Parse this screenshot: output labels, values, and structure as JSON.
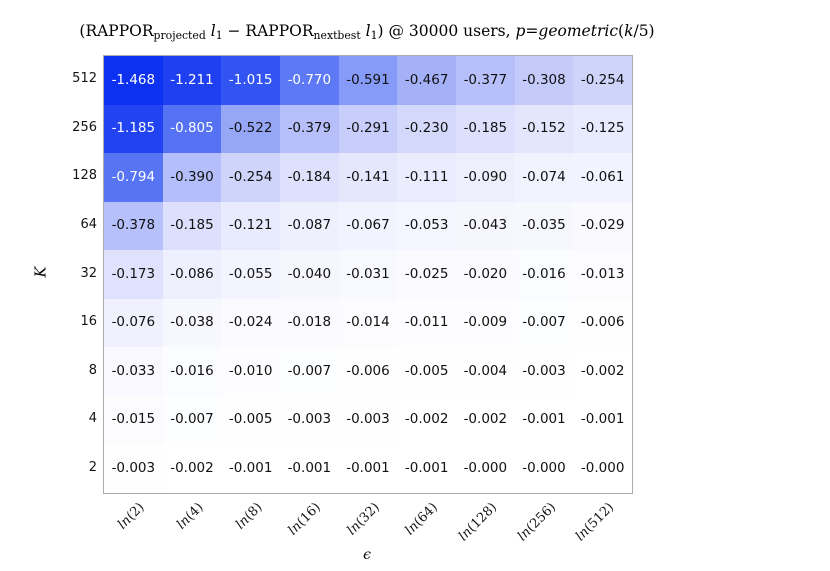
{
  "figure": {
    "background_color": "#ffffff"
  },
  "chart_data": {
    "type": "heatmap",
    "title": "(RAPPOR_projected l1 − RAPPOR_nextbest l1) @ 30000 users, p=geometric(k/5)",
    "title_segments": [
      {
        "t": "(RAPPOR",
        "s": "r"
      },
      {
        "t": "projected",
        "s": "sub"
      },
      {
        "t": " ",
        "s": "r"
      },
      {
        "t": "l",
        "s": "i"
      },
      {
        "t": "1",
        "s": "sub"
      },
      {
        "t": " − RAPPOR",
        "s": "r"
      },
      {
        "t": "nextbest",
        "s": "sub"
      },
      {
        "t": " ",
        "s": "r"
      },
      {
        "t": "l",
        "s": "i"
      },
      {
        "t": "1",
        "s": "sub"
      },
      {
        "t": ") @ 30000 users, ",
        "s": "r"
      },
      {
        "t": "p",
        "s": "i"
      },
      {
        "t": "=",
        "s": "r"
      },
      {
        "t": "geometric",
        "s": "i"
      },
      {
        "t": "(",
        "s": "r"
      },
      {
        "t": "k",
        "s": "i"
      },
      {
        "t": "/5)",
        "s": "r"
      }
    ],
    "xlabel": "ϵ",
    "ylabel": "K",
    "x_tick_labels": [
      "ln(2)",
      "ln(4)",
      "ln(8)",
      "ln(16)",
      "ln(32)",
      "ln(64)",
      "ln(128)",
      "ln(256)",
      "ln(512)"
    ],
    "y_tick_labels": [
      "512",
      "256",
      "128",
      "64",
      "32",
      "16",
      "8",
      "4",
      "2"
    ],
    "values": [
      [
        -1.468,
        -1.211,
        -1.015,
        -0.77,
        -0.591,
        -0.467,
        -0.377,
        -0.308,
        -0.254
      ],
      [
        -1.185,
        -0.805,
        -0.522,
        -0.379,
        -0.291,
        -0.23,
        -0.185,
        -0.152,
        -0.125
      ],
      [
        -0.794,
        -0.39,
        -0.254,
        -0.184,
        -0.141,
        -0.111,
        -0.09,
        -0.074,
        -0.061
      ],
      [
        -0.378,
        -0.185,
        -0.121,
        -0.087,
        -0.067,
        -0.053,
        -0.043,
        -0.035,
        -0.029
      ],
      [
        -0.173,
        -0.086,
        -0.055,
        -0.04,
        -0.031,
        -0.025,
        -0.02,
        -0.016,
        -0.013
      ],
      [
        -0.076,
        -0.038,
        -0.024,
        -0.018,
        -0.014,
        -0.011,
        -0.009,
        -0.007,
        -0.006
      ],
      [
        -0.033,
        -0.016,
        -0.01,
        -0.007,
        -0.006,
        -0.005,
        -0.004,
        -0.003,
        -0.002
      ],
      [
        -0.015,
        -0.007,
        -0.005,
        -0.003,
        -0.003,
        -0.002,
        -0.002,
        -0.001,
        -0.001
      ],
      [
        -0.003,
        -0.002,
        -0.001,
        -0.001,
        -0.001,
        -0.001,
        -0.0,
        -0.0,
        -0.0
      ]
    ],
    "cell_labels": [
      [
        "-1.468",
        "-1.211",
        "-1.015",
        "-0.770",
        "-0.591",
        "-0.467",
        "-0.377",
        "-0.308",
        "-0.254"
      ],
      [
        "-1.185",
        "-0.805",
        "-0.522",
        "-0.379",
        "-0.291",
        "-0.230",
        "-0.185",
        "-0.152",
        "-0.125"
      ],
      [
        "-0.794",
        "-0.390",
        "-0.254",
        "-0.184",
        "-0.141",
        "-0.111",
        "-0.090",
        "-0.074",
        "-0.061"
      ],
      [
        "-0.378",
        "-0.185",
        "-0.121",
        "-0.087",
        "-0.067",
        "-0.053",
        "-0.043",
        "-0.035",
        "-0.029"
      ],
      [
        "-0.173",
        "-0.086",
        "-0.055",
        "-0.040",
        "-0.031",
        "-0.025",
        "-0.020",
        "-0.016",
        "-0.013"
      ],
      [
        "-0.076",
        "-0.038",
        "-0.024",
        "-0.018",
        "-0.014",
        "-0.011",
        "-0.009",
        "-0.007",
        "-0.006"
      ],
      [
        "-0.033",
        "-0.016",
        "-0.010",
        "-0.007",
        "-0.006",
        "-0.005",
        "-0.004",
        "-0.003",
        "-0.002"
      ],
      [
        "-0.015",
        "-0.007",
        "-0.005",
        "-0.003",
        "-0.003",
        "-0.002",
        "-0.002",
        "-0.001",
        "-0.001"
      ],
      [
        "-0.003",
        "-0.002",
        "-0.001",
        "-0.001",
        "-0.001",
        "-0.001",
        "-0.000",
        "-0.000",
        "-0.000"
      ]
    ],
    "grid": false,
    "legend": "none",
    "colormap": {
      "description": "white at 0 to saturated blue at most negative",
      "dark_text_color": "#111111",
      "light_text_color": "#ffffff",
      "white_text_abs_threshold": 0.7,
      "stops": [
        {
          "t": 0.0,
          "c": [
            255,
            255,
            255
          ]
        },
        {
          "t": 0.05,
          "c": [
            244,
            245,
            254
          ]
        },
        {
          "t": 0.1,
          "c": [
            236,
            238,
            253
          ]
        },
        {
          "t": 0.2,
          "c": [
            218,
            222,
            252
          ]
        },
        {
          "t": 0.3,
          "c": [
            198,
            204,
            251
          ]
        },
        {
          "t": 0.45,
          "c": [
            168,
            180,
            249
          ]
        },
        {
          "t": 0.6,
          "c": [
            132,
            152,
            247
          ]
        },
        {
          "t": 0.8,
          "c": [
            86,
            115,
            245
          ]
        },
        {
          "t": 1.0,
          "c": [
            51,
            85,
            243
          ]
        },
        {
          "t": 1.25,
          "c": [
            27,
            60,
            241
          ]
        },
        {
          "t": 1.5,
          "c": [
            11,
            47,
            240
          ]
        }
      ]
    }
  }
}
